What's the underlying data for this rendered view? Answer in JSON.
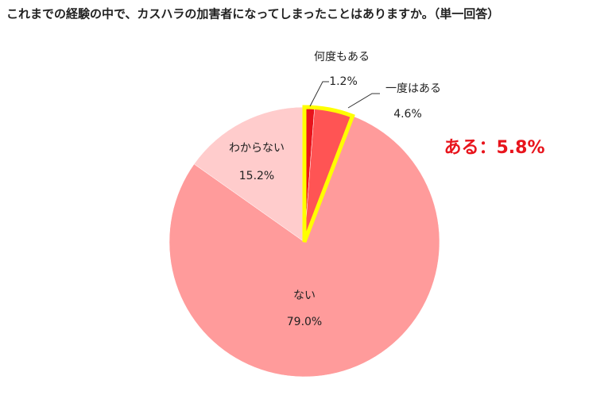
{
  "chart_data": {
    "type": "pie",
    "title": "これまでの経験の中で、カスハラの加害者になってしまったことはありますか。（単一回答）",
    "categories": [
      "何度もある",
      "一度はある",
      "ない",
      "わからない"
    ],
    "values": [
      1.2,
      4.6,
      79.0,
      15.2
    ],
    "value_labels": [
      "1.2%",
      "4.6%",
      "79.0%",
      "15.2%"
    ],
    "colors": [
      "#e8141c",
      "#ff5454",
      "#ff9b9b",
      "#ffcccc"
    ],
    "highlight_slices": [
      0,
      1
    ],
    "highlight_color": "#ffff00",
    "annotation": "ある：5.8%",
    "annotation_color": "#e8141c"
  }
}
